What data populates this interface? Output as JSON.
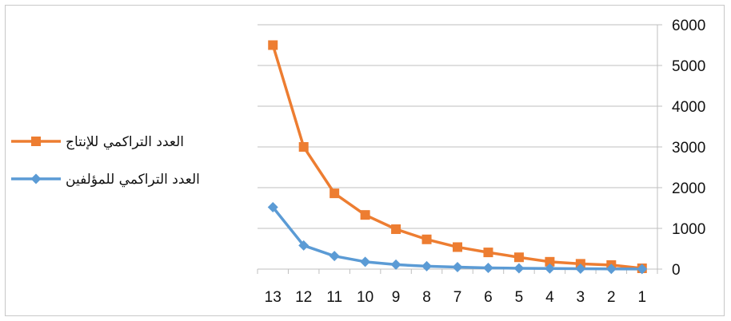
{
  "chart_data": {
    "type": "line",
    "categories": [
      "13",
      "12",
      "11",
      "10",
      "9",
      "8",
      "7",
      "6",
      "5",
      "4",
      "3",
      "2",
      "1"
    ],
    "series": [
      {
        "name": "العدد التراكمي للإنتاج",
        "color": "#ED7D31",
        "marker": "square",
        "values": [
          5500,
          3000,
          1860,
          1330,
          980,
          730,
          540,
          410,
          290,
          180,
          130,
          100,
          20
        ]
      },
      {
        "name": "العدد التراكمي للمؤلفين",
        "color": "#5B9BD5",
        "marker": "diamond",
        "values": [
          1520,
          580,
          320,
          180,
          110,
          70,
          50,
          30,
          20,
          15,
          10,
          5,
          2
        ]
      }
    ],
    "y_ticks": [
      "0",
      "1000",
      "2000",
      "3000",
      "4000",
      "5000",
      "6000"
    ],
    "ylim": [
      0,
      6000
    ],
    "grid": true,
    "y_axis_side": "right",
    "legend_position": "left"
  }
}
